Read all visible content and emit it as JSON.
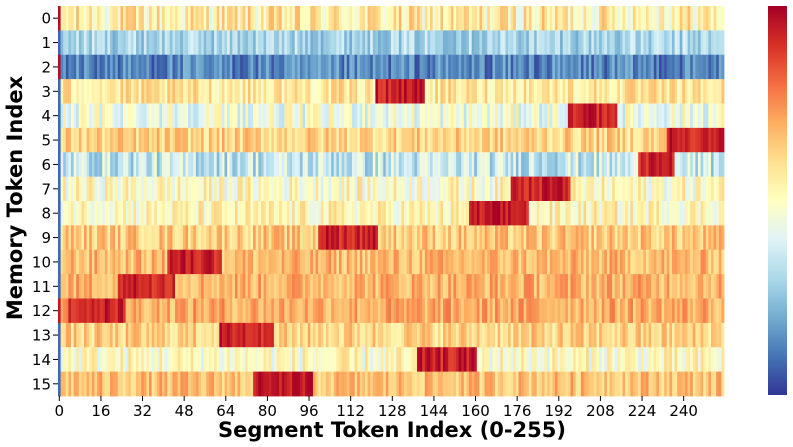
{
  "chart_data": {
    "type": "heatmap",
    "title": "",
    "xlabel": "Segment Token Index (0-255)",
    "ylabel": "Memory Token Index",
    "x_range": [
      0,
      255
    ],
    "x_tick_labels": [
      "0",
      "16",
      "32",
      "48",
      "64",
      "80",
      "96",
      "112",
      "128",
      "144",
      "160",
      "176",
      "192",
      "208",
      "224",
      "240"
    ],
    "y_tick_labels": [
      "0",
      "1",
      "2",
      "3",
      "4",
      "5",
      "6",
      "7",
      "8",
      "9",
      "10",
      "11",
      "12",
      "13",
      "14",
      "15"
    ],
    "colormap": "RdYlBu_r (blue = low, red = high)",
    "colorbar": true,
    "colorbar_tick_labels": [],
    "cell_resolution": "one column per segment token (256 columns)",
    "rows": [
      {
        "memory_token": 0,
        "baseline_level": 0.55,
        "noise": 0.14,
        "peak_range": null,
        "note": "mixed yellow/orange, strong red at token 0"
      },
      {
        "memory_token": 1,
        "baseline_level": 0.3,
        "noise": 0.1,
        "peak_range": null,
        "note": "mostly light-to-mid blue"
      },
      {
        "memory_token": 2,
        "baseline_level": 0.13,
        "noise": 0.1,
        "peak_range": null,
        "note": "mostly dark blue, red at token 0"
      },
      {
        "memory_token": 3,
        "baseline_level": 0.57,
        "noise": 0.1,
        "peak_range": [
          122,
          140
        ],
        "note": "red band near tokens 122-140"
      },
      {
        "memory_token": 4,
        "baseline_level": 0.45,
        "noise": 0.12,
        "peak_range": [
          196,
          214
        ],
        "note": "orange/red band near tokens 196-214"
      },
      {
        "memory_token": 5,
        "baseline_level": 0.62,
        "noise": 0.1,
        "peak_range": [
          234,
          255
        ],
        "note": "red band near tokens 234-255"
      },
      {
        "memory_token": 6,
        "baseline_level": 0.35,
        "noise": 0.13,
        "peak_range": [
          223,
          236
        ],
        "note": "blue with red strip near tokens 223-236"
      },
      {
        "memory_token": 7,
        "baseline_level": 0.5,
        "noise": 0.12,
        "peak_range": [
          174,
          196
        ],
        "note": "red band near tokens 174-196"
      },
      {
        "memory_token": 8,
        "baseline_level": 0.52,
        "noise": 0.11,
        "peak_range": [
          158,
          180
        ],
        "note": "red band near tokens 158-180"
      },
      {
        "memory_token": 9,
        "baseline_level": 0.64,
        "noise": 0.1,
        "peak_range": [
          100,
          122
        ],
        "note": "red band near tokens 100-122"
      },
      {
        "memory_token": 10,
        "baseline_level": 0.67,
        "noise": 0.09,
        "peak_range": [
          42,
          62
        ],
        "note": "red band near tokens 42-62"
      },
      {
        "memory_token": 11,
        "baseline_level": 0.69,
        "noise": 0.09,
        "peak_range": [
          23,
          44
        ],
        "note": "red band near tokens 23-44"
      },
      {
        "memory_token": 12,
        "baseline_level": 0.7,
        "noise": 0.09,
        "peak_range": [
          4,
          25
        ],
        "note": "red band near tokens 4-25"
      },
      {
        "memory_token": 13,
        "baseline_level": 0.62,
        "noise": 0.1,
        "peak_range": [
          62,
          82
        ],
        "note": "red band near tokens 62-82"
      },
      {
        "memory_token": 14,
        "baseline_level": 0.5,
        "noise": 0.12,
        "peak_range": [
          138,
          160
        ],
        "note": "red band near tokens 138-160"
      },
      {
        "memory_token": 15,
        "baseline_level": 0.66,
        "noise": 0.09,
        "peak_range": [
          75,
          97
        ],
        "note": "red band near tokens 75-97"
      }
    ]
  }
}
